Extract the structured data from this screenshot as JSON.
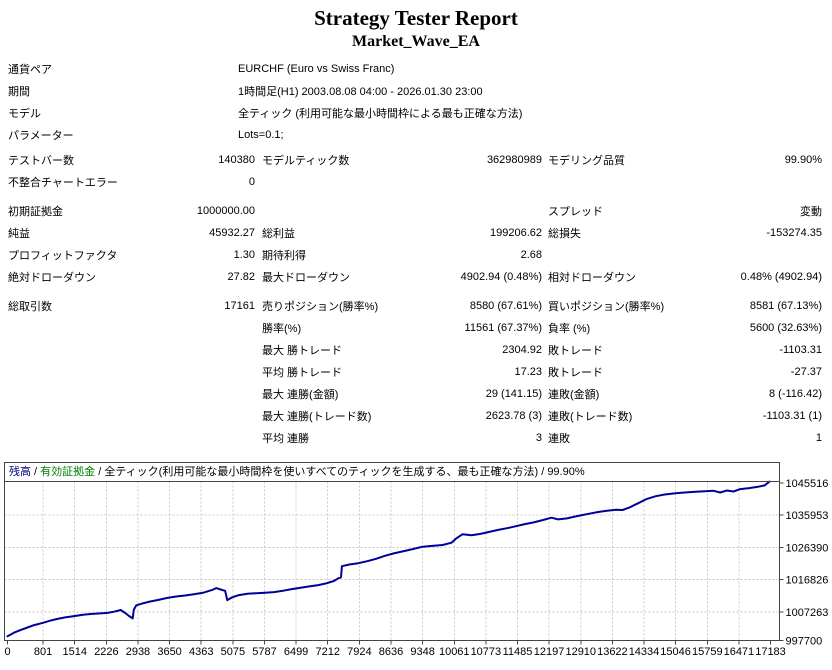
{
  "title": "Strategy Tester Report",
  "subtitle": "Market_Wave_EA",
  "info_rows": [
    {
      "label": "通貨ペア",
      "value": "EURCHF (Euro vs Swiss Franc)"
    },
    {
      "label": "期間",
      "value": "1時間足(H1) 2003.08.08 04:00 - 2026.01.30 23:00"
    },
    {
      "label": "モデル",
      "value": "全ティック (利用可能な最小時間枠による最も正確な方法)"
    },
    {
      "label": "パラメーター",
      "value": "Lots=0.1;"
    }
  ],
  "stat_rows": [
    {
      "gap": false,
      "cells": [
        "テストバー数",
        "140380",
        "モデルティック数",
        "362980989",
        "モデリング品質",
        "99.90%"
      ]
    },
    {
      "gap": false,
      "cells": [
        "不整合チャートエラー",
        "0",
        "",
        "",
        "",
        ""
      ]
    },
    {
      "gap": true,
      "cells": [
        "初期証拠金",
        "1000000.00",
        "",
        "",
        "スプレッド",
        "変動"
      ]
    },
    {
      "gap": false,
      "cells": [
        "純益",
        "45932.27",
        "総利益",
        "199206.62",
        "総損失",
        "-153274.35"
      ]
    },
    {
      "gap": false,
      "cells": [
        "プロフィットファクタ",
        "1.30",
        "期待利得",
        "2.68",
        "",
        ""
      ]
    },
    {
      "gap": false,
      "cells": [
        "絶対ドローダウン",
        "27.82",
        "最大ドローダウン",
        "4902.94 (0.48%)",
        "相対ドローダウン",
        "0.48% (4902.94)"
      ]
    },
    {
      "gap": true,
      "cells": [
        "総取引数",
        "17161",
        "売りポジション(勝率%)",
        "8580 (67.61%)",
        "買いポジション(勝率%)",
        "8581 (67.13%)"
      ]
    },
    {
      "gap": false,
      "cells": [
        "",
        "",
        "勝率(%)",
        "11561 (67.37%)",
        "負率 (%)",
        "5600 (32.63%)"
      ]
    },
    {
      "gap": false,
      "cells": [
        "",
        "",
        "最大 勝トレード",
        "2304.92",
        "敗トレード",
        "-1103.31"
      ]
    },
    {
      "gap": false,
      "cells": [
        "",
        "",
        "平均 勝トレード",
        "17.23",
        "敗トレード",
        "-27.37"
      ]
    },
    {
      "gap": false,
      "cells": [
        "",
        "",
        "最大 連勝(金額)",
        "29 (141.15)",
        "連敗(金額)",
        "8 (-116.42)"
      ]
    },
    {
      "gap": false,
      "cells": [
        "",
        "",
        "最大 連勝(トレード数)",
        "2623.78 (3)",
        "連敗(トレード数)",
        "-1103.31 (1)"
      ]
    },
    {
      "gap": false,
      "cells": [
        "",
        "",
        "平均 連勝",
        "3",
        "連敗",
        "1"
      ]
    }
  ],
  "chart_data": {
    "type": "line",
    "header_parts": [
      {
        "label": "残高",
        "color": "#000080"
      },
      {
        "label": "有効証拠金",
        "color": "#008000"
      },
      {
        "label": "全ティック(利用可能な最小時間枠を使いすべてのティックを生成する、最も正確な方法)",
        "color": "#000000"
      },
      {
        "label": "99.90%",
        "color": "#000000"
      }
    ],
    "separator": " / ",
    "x_ticks": [
      0,
      801,
      1514,
      2226,
      2938,
      3650,
      4363,
      5075,
      5787,
      6499,
      7212,
      7924,
      8636,
      9348,
      10061,
      10773,
      11485,
      12197,
      12910,
      13622,
      14334,
      15046,
      15759,
      16471,
      17183
    ],
    "y_ticks": [
      1045516,
      1035953,
      1026390,
      1016826,
      1007263,
      997700
    ],
    "x_range": [
      0,
      17183
    ],
    "y_range": [
      997700,
      1045516
    ],
    "line_color": "#000099",
    "grid_color": "#c8c8c8",
    "border_color": "#444444",
    "series": [
      {
        "name": "残高",
        "points": [
          [
            0,
            1000000
          ],
          [
            150,
            1001100
          ],
          [
            300,
            1001900
          ],
          [
            450,
            1002600
          ],
          [
            600,
            1003300
          ],
          [
            801,
            1004000
          ],
          [
            950,
            1004600
          ],
          [
            1100,
            1005100
          ],
          [
            1300,
            1005600
          ],
          [
            1500,
            1006000
          ],
          [
            1700,
            1006400
          ],
          [
            1900,
            1006650
          ],
          [
            2100,
            1006800
          ],
          [
            2250,
            1006950
          ],
          [
            2400,
            1007300
          ],
          [
            2550,
            1007800
          ],
          [
            2650,
            1006900
          ],
          [
            2750,
            1005900
          ],
          [
            2820,
            1005300
          ],
          [
            2845,
            1007900
          ],
          [
            2900,
            1009200
          ],
          [
            3050,
            1009800
          ],
          [
            3200,
            1010300
          ],
          [
            3400,
            1010800
          ],
          [
            3600,
            1011400
          ],
          [
            3800,
            1011800
          ],
          [
            4000,
            1012100
          ],
          [
            4200,
            1012500
          ],
          [
            4400,
            1012900
          ],
          [
            4600,
            1013700
          ],
          [
            4700,
            1014300
          ],
          [
            4800,
            1013900
          ],
          [
            4900,
            1013500
          ],
          [
            4950,
            1010700
          ],
          [
            5050,
            1011500
          ],
          [
            5200,
            1012200
          ],
          [
            5400,
            1012600
          ],
          [
            5600,
            1012800
          ],
          [
            5800,
            1012950
          ],
          [
            6000,
            1013100
          ],
          [
            6200,
            1013500
          ],
          [
            6400,
            1014000
          ],
          [
            6600,
            1014400
          ],
          [
            6800,
            1014800
          ],
          [
            7000,
            1015200
          ],
          [
            7200,
            1015800
          ],
          [
            7350,
            1016400
          ],
          [
            7450,
            1017200
          ],
          [
            7510,
            1017500
          ],
          [
            7530,
            1020800
          ],
          [
            7700,
            1021300
          ],
          [
            7900,
            1021700
          ],
          [
            8100,
            1022300
          ],
          [
            8300,
            1023000
          ],
          [
            8500,
            1023900
          ],
          [
            8700,
            1024600
          ],
          [
            8900,
            1025200
          ],
          [
            9100,
            1025800
          ],
          [
            9348,
            1026600
          ],
          [
            9600,
            1026900
          ],
          [
            9800,
            1027100
          ],
          [
            10000,
            1027800
          ],
          [
            10100,
            1029000
          ],
          [
            10250,
            1030300
          ],
          [
            10450,
            1030000
          ],
          [
            10650,
            1030400
          ],
          [
            10850,
            1031000
          ],
          [
            11050,
            1031600
          ],
          [
            11250,
            1032100
          ],
          [
            11450,
            1032700
          ],
          [
            11650,
            1033300
          ],
          [
            11850,
            1033800
          ],
          [
            12050,
            1034500
          ],
          [
            12250,
            1035200
          ],
          [
            12400,
            1034700
          ],
          [
            12600,
            1035000
          ],
          [
            12800,
            1035600
          ],
          [
            12910,
            1035900
          ],
          [
            13100,
            1036400
          ],
          [
            13300,
            1036900
          ],
          [
            13500,
            1037300
          ],
          [
            13700,
            1037600
          ],
          [
            13850,
            1037500
          ],
          [
            14000,
            1038200
          ],
          [
            14200,
            1039500
          ],
          [
            14400,
            1040800
          ],
          [
            14600,
            1041600
          ],
          [
            14800,
            1042100
          ],
          [
            15046,
            1042500
          ],
          [
            15250,
            1042700
          ],
          [
            15500,
            1042900
          ],
          [
            15759,
            1043100
          ],
          [
            15900,
            1043200
          ],
          [
            16050,
            1042700
          ],
          [
            16200,
            1043300
          ],
          [
            16350,
            1043000
          ],
          [
            16500,
            1043700
          ],
          [
            16700,
            1044000
          ],
          [
            16900,
            1044400
          ],
          [
            17050,
            1044800
          ],
          [
            17161,
            1045932
          ]
        ]
      }
    ]
  }
}
